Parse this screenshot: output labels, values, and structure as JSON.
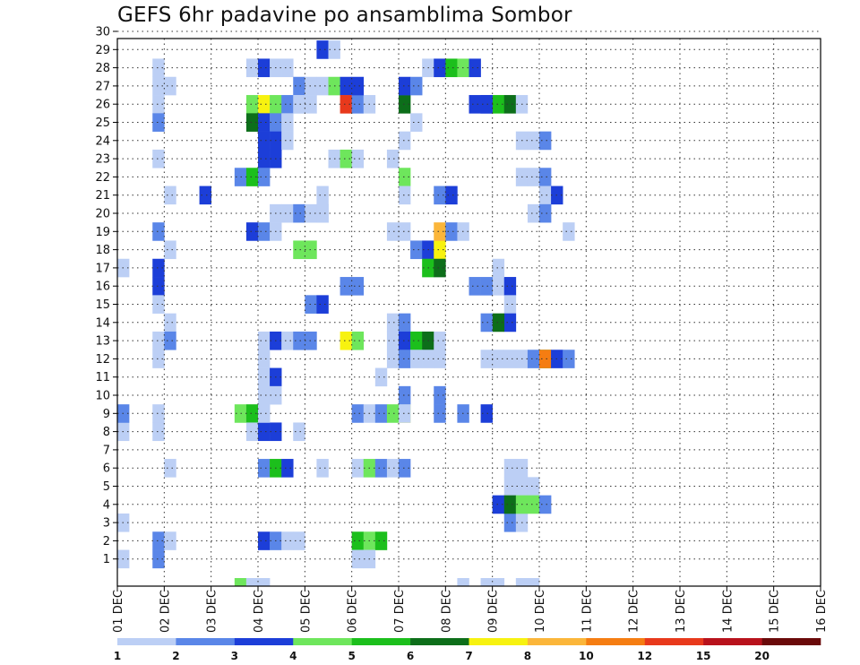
{
  "chart_data": {
    "type": "heatmap",
    "title": "GEFS 6hr padavine po ansamblima Sombor",
    "xlabel": "",
    "ylabel": "",
    "x_tick_labels": [
      "01 DEC",
      "02 DEC",
      "03 DEC",
      "04 DEC",
      "05 DEC",
      "06 DEC",
      "07 DEC",
      "08 DEC",
      "09 DEC",
      "10 DEC",
      "11 DEC",
      "12 DEC",
      "13 DEC",
      "14 DEC",
      "15 DEC",
      "16 DEC"
    ],
    "y_tick_labels": [
      "1",
      "2",
      "3",
      "4",
      "5",
      "6",
      "7",
      "8",
      "9",
      "10",
      "11",
      "12",
      "13",
      "14",
      "15",
      "16",
      "17",
      "18",
      "19",
      "20",
      "21",
      "22",
      "23",
      "24",
      "25",
      "26",
      "27",
      "28",
      "29",
      "30"
    ],
    "xlim": [
      0,
      60
    ],
    "ylim": [
      0,
      30
    ],
    "x_step_hours": 6,
    "grid": true,
    "colorbar": {
      "labels": [
        "1",
        "2",
        "3",
        "4",
        "5",
        "6",
        "7",
        "8",
        "10",
        "12",
        "15",
        "20"
      ],
      "colors": [
        "#bccff5",
        "#5a86e8",
        "#1c3ed8",
        "#6ee65c",
        "#1cbf1c",
        "#0d6e1a",
        "#f7f210",
        "#fbb63a",
        "#f57d12",
        "#e8391c",
        "#b8121c",
        "#6a0a0a"
      ]
    },
    "cells": [
      [
        0,
        3,
        1
      ],
      [
        0,
        1,
        1
      ],
      [
        0,
        8,
        1
      ],
      [
        0,
        9,
        2
      ],
      [
        0,
        17,
        1
      ],
      [
        3,
        28,
        1
      ],
      [
        3,
        27,
        1
      ],
      [
        4,
        27,
        1
      ],
      [
        3,
        26,
        1
      ],
      [
        3,
        25,
        2
      ],
      [
        3,
        23,
        1
      ],
      [
        4,
        21,
        1
      ],
      [
        3,
        19,
        2
      ],
      [
        4,
        18,
        1
      ],
      [
        3,
        17,
        3
      ],
      [
        3,
        16,
        3
      ],
      [
        3,
        15,
        1
      ],
      [
        4,
        14,
        1
      ],
      [
        3,
        13,
        1
      ],
      [
        4,
        13,
        2
      ],
      [
        3,
        12,
        1
      ],
      [
        3,
        9,
        1
      ],
      [
        3,
        8,
        1
      ],
      [
        4,
        6,
        1
      ],
      [
        3,
        2,
        2
      ],
      [
        4,
        2,
        1
      ],
      [
        3,
        1,
        2
      ],
      [
        7,
        21,
        3
      ],
      [
        11,
        19,
        3
      ],
      [
        12,
        19,
        2
      ],
      [
        13,
        19,
        1
      ],
      [
        12,
        2,
        3
      ],
      [
        13,
        2,
        2
      ],
      [
        10,
        0,
        4
      ],
      [
        11,
        0,
        1
      ],
      [
        10,
        9,
        4
      ],
      [
        11,
        9,
        5
      ],
      [
        12,
        9,
        1
      ],
      [
        11,
        8,
        1
      ],
      [
        12,
        8,
        3
      ],
      [
        13,
        8,
        3
      ],
      [
        11,
        28,
        1
      ],
      [
        12,
        28,
        3
      ],
      [
        13,
        28,
        1
      ],
      [
        14,
        28,
        1
      ],
      [
        15,
        27,
        2
      ],
      [
        16,
        27,
        1
      ],
      [
        15,
        26,
        1
      ],
      [
        16,
        26,
        1
      ],
      [
        11,
        26,
        4
      ],
      [
        12,
        26,
        7
      ],
      [
        13,
        26,
        4
      ],
      [
        14,
        26,
        2
      ],
      [
        15,
        26,
        1
      ],
      [
        11,
        25,
        6
      ],
      [
        12,
        25,
        3
      ],
      [
        13,
        25,
        2
      ],
      [
        14,
        25,
        1
      ],
      [
        12,
        24,
        3
      ],
      [
        13,
        24,
        3
      ],
      [
        14,
        24,
        1
      ],
      [
        12,
        23,
        3
      ],
      [
        13,
        23,
        3
      ],
      [
        10,
        22,
        2
      ],
      [
        11,
        22,
        5
      ],
      [
        12,
        22,
        2
      ],
      [
        12,
        13,
        1
      ],
      [
        13,
        13,
        3
      ],
      [
        14,
        13,
        1
      ],
      [
        15,
        13,
        2
      ],
      [
        16,
        13,
        2
      ],
      [
        12,
        12,
        1
      ],
      [
        12,
        11,
        1
      ],
      [
        13,
        11,
        3
      ],
      [
        12,
        10,
        1
      ],
      [
        13,
        10,
        1
      ],
      [
        12,
        9,
        1
      ],
      [
        12,
        6,
        2
      ],
      [
        13,
        6,
        5
      ],
      [
        14,
        6,
        3
      ],
      [
        11,
        0,
        1
      ],
      [
        12,
        0,
        1
      ],
      [
        14,
        2,
        1
      ],
      [
        15,
        2,
        1
      ],
      [
        15,
        8,
        1
      ],
      [
        13,
        20,
        1
      ],
      [
        14,
        20,
        1
      ],
      [
        15,
        20,
        2
      ],
      [
        16,
        20,
        1
      ],
      [
        17,
        20,
        1
      ],
      [
        15,
        18,
        4
      ],
      [
        16,
        18,
        4
      ],
      [
        16,
        15,
        2
      ],
      [
        17,
        21,
        1
      ],
      [
        17,
        20,
        1
      ],
      [
        17,
        6,
        1
      ],
      [
        17,
        27,
        1
      ],
      [
        18,
        27,
        4
      ],
      [
        19,
        27,
        3
      ],
      [
        17,
        29,
        3
      ],
      [
        18,
        29,
        1
      ],
      [
        18,
        23,
        1
      ],
      [
        19,
        23,
        4
      ],
      [
        20,
        23,
        1
      ],
      [
        19,
        26,
        10
      ],
      [
        20,
        26,
        2
      ],
      [
        21,
        26,
        1
      ],
      [
        20,
        27,
        3
      ],
      [
        19,
        16,
        2
      ],
      [
        20,
        16,
        2
      ],
      [
        17,
        15,
        3
      ],
      [
        19,
        13,
        7
      ],
      [
        20,
        13,
        4
      ],
      [
        20,
        9,
        2
      ],
      [
        21,
        9,
        1
      ],
      [
        22,
        9,
        2
      ],
      [
        23,
        9,
        4
      ],
      [
        24,
        9,
        7
      ],
      [
        20,
        6,
        1
      ],
      [
        21,
        6,
        4
      ],
      [
        22,
        6,
        2
      ],
      [
        23,
        6,
        1
      ],
      [
        24,
        6,
        2
      ],
      [
        20,
        2,
        5
      ],
      [
        21,
        2,
        4
      ],
      [
        22,
        2,
        5
      ],
      [
        20,
        1,
        1
      ],
      [
        21,
        1,
        1
      ],
      [
        22,
        11,
        1
      ],
      [
        23,
        14,
        1
      ],
      [
        23,
        13,
        1
      ],
      [
        24,
        14,
        2
      ],
      [
        24,
        13,
        3
      ],
      [
        25,
        13,
        5
      ],
      [
        26,
        13,
        6
      ],
      [
        27,
        13,
        1
      ],
      [
        23,
        12,
        1
      ],
      [
        24,
        12,
        2
      ],
      [
        25,
        12,
        1
      ],
      [
        26,
        12,
        1
      ],
      [
        27,
        12,
        1
      ],
      [
        24,
        10,
        2
      ],
      [
        24,
        9,
        1
      ],
      [
        27,
        10,
        2
      ],
      [
        27,
        9,
        2
      ],
      [
        23,
        19,
        1
      ],
      [
        24,
        19,
        1
      ],
      [
        24,
        22,
        4
      ],
      [
        23,
        23,
        1
      ],
      [
        24,
        24,
        1
      ],
      [
        24,
        26,
        6
      ],
      [
        24,
        27,
        3
      ],
      [
        25,
        27,
        2
      ],
      [
        25,
        18,
        2
      ],
      [
        26,
        18,
        3
      ],
      [
        27,
        18,
        7
      ],
      [
        26,
        17,
        5
      ],
      [
        27,
        17,
        6
      ],
      [
        27,
        19,
        8
      ],
      [
        28,
        19,
        2
      ],
      [
        27,
        21,
        2
      ],
      [
        28,
        21,
        3
      ],
      [
        25,
        25,
        1
      ],
      [
        24,
        21,
        1
      ],
      [
        26,
        28,
        1
      ],
      [
        27,
        28,
        3
      ],
      [
        28,
        28,
        5
      ],
      [
        29,
        28,
        4
      ],
      [
        30,
        28,
        3
      ],
      [
        31,
        26,
        3
      ],
      [
        32,
        26,
        5
      ],
      [
        33,
        26,
        6
      ],
      [
        34,
        26,
        1
      ],
      [
        32,
        16,
        1
      ],
      [
        33,
        16,
        3
      ],
      [
        33,
        15,
        1
      ],
      [
        33,
        14,
        3
      ],
      [
        32,
        14,
        6
      ],
      [
        31,
        14,
        2
      ],
      [
        31,
        12,
        1
      ],
      [
        32,
        12,
        1
      ],
      [
        33,
        12,
        1
      ],
      [
        34,
        12,
        1
      ],
      [
        35,
        12,
        2
      ],
      [
        36,
        12,
        5
      ],
      [
        33,
        5,
        1
      ],
      [
        34,
        5,
        1
      ],
      [
        35,
        5,
        1
      ],
      [
        33,
        3,
        2
      ],
      [
        34,
        3,
        1
      ],
      [
        32,
        4,
        3
      ],
      [
        33,
        4,
        6
      ],
      [
        34,
        4,
        4
      ],
      [
        35,
        4,
        4
      ],
      [
        36,
        4,
        2
      ],
      [
        36,
        12,
        9
      ],
      [
        37,
        12,
        3
      ],
      [
        38,
        12,
        2
      ],
      [
        33,
        6,
        1
      ],
      [
        34,
        6,
        1
      ],
      [
        29,
        9,
        2
      ],
      [
        31,
        9,
        3
      ],
      [
        29,
        0,
        1
      ],
      [
        31,
        0,
        1
      ],
      [
        32,
        0,
        1
      ],
      [
        35,
        0,
        1
      ],
      [
        34,
        0,
        1
      ],
      [
        34,
        24,
        1
      ],
      [
        35,
        24,
        1
      ],
      [
        36,
        24,
        2
      ],
      [
        34,
        22,
        1
      ],
      [
        35,
        22,
        1
      ],
      [
        36,
        22,
        2
      ],
      [
        36,
        21,
        1
      ],
      [
        37,
        21,
        3
      ],
      [
        35,
        20,
        1
      ],
      [
        36,
        20,
        2
      ],
      [
        38,
        19,
        1
      ],
      [
        31,
        16,
        2
      ],
      [
        30,
        16,
        2
      ],
      [
        32,
        17,
        1
      ],
      [
        29,
        19,
        1
      ],
      [
        30,
        26,
        3
      ],
      [
        31,
        26,
        3
      ]
    ]
  }
}
